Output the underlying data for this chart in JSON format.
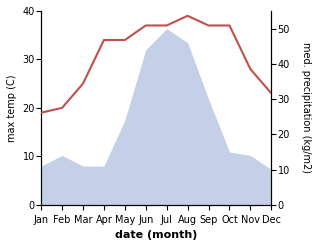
{
  "months": [
    "Jan",
    "Feb",
    "Mar",
    "Apr",
    "May",
    "Jun",
    "Jul",
    "Aug",
    "Sep",
    "Oct",
    "Nov",
    "Dec"
  ],
  "temp": [
    19,
    20,
    25,
    34,
    34,
    37,
    37,
    39,
    37,
    37,
    28,
    23
  ],
  "precip": [
    11,
    14,
    11,
    11,
    24,
    44,
    50,
    46,
    30,
    15,
    14,
    10
  ],
  "temp_color": "#c0504d",
  "precip_fill_color": "#c5d0e8",
  "temp_ylim": [
    0,
    40
  ],
  "precip_ylim": [
    0,
    55
  ],
  "xlabel": "date (month)",
  "ylabel_left": "max temp (C)",
  "ylabel_right": "med. precipitation (kg/m2)",
  "bg_color": "#ffffff",
  "temp_yticks": [
    0,
    10,
    20,
    30,
    40
  ],
  "precip_yticks": [
    0,
    10,
    20,
    30,
    40,
    50
  ],
  "font_size": 7,
  "xlabel_fontsize": 8
}
